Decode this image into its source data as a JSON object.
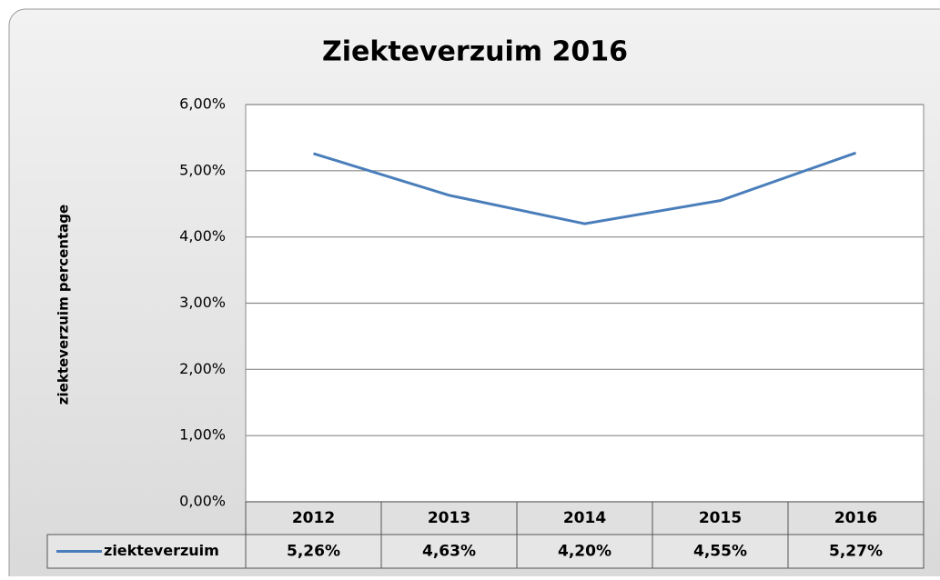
{
  "chart_data": {
    "type": "line",
    "title": "Ziekteverzuim 2016",
    "y_label": "ziekteverzuim percentage",
    "categories": [
      "2012",
      "2013",
      "2014",
      "2015",
      "2016"
    ],
    "series": [
      {
        "name": "ziekteverzuim",
        "color": "#4a7ebb",
        "values": [
          5.26,
          4.63,
          4.2,
          4.55,
          5.27
        ],
        "value_labels": [
          "5,26%",
          "4,63%",
          "4,20%",
          "4,55%",
          "5,27%"
        ]
      }
    ],
    "ylim": [
      0,
      6
    ],
    "yticks": [
      {
        "value": 0,
        "label": "0,00%"
      },
      {
        "value": 1,
        "label": "1,00%"
      },
      {
        "value": 2,
        "label": "2,00%"
      },
      {
        "value": 3,
        "label": "3,00%"
      },
      {
        "value": 4,
        "label": "4,00%"
      },
      {
        "value": 5,
        "label": "5,00%"
      },
      {
        "value": 6,
        "label": "6,00%"
      }
    ],
    "grid": true,
    "data_table": true
  }
}
